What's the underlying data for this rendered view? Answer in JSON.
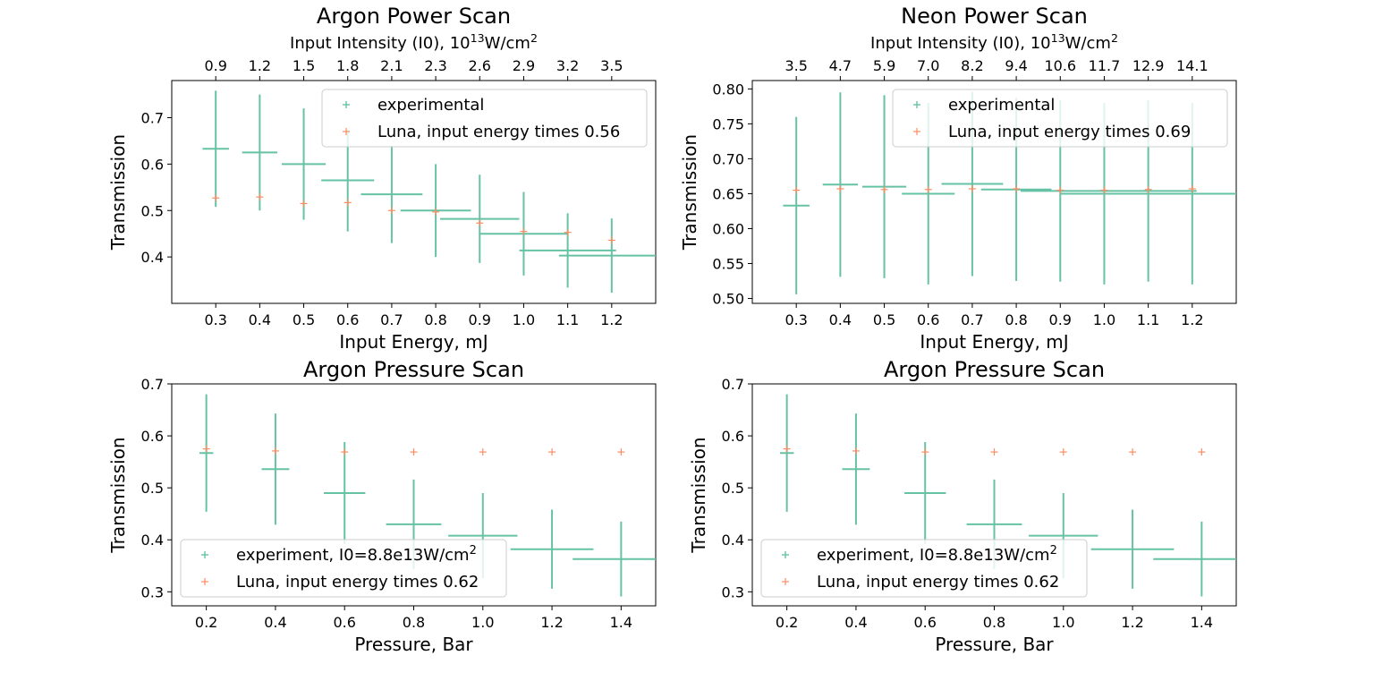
{
  "colors": {
    "experimental": "#66c2a5",
    "luna": "#fc8d62",
    "axis": "#000000",
    "legend_border": "#cccccc"
  },
  "chart_data": [
    {
      "id": "argon-power",
      "type": "scatter",
      "title": "Argon Power Scan",
      "xlabel": "Input Energy, mJ",
      "ylabel": "Transmission",
      "top_xlabel": {
        "base": "Input Intensity (I0), 10",
        "exp": "13",
        "unit": "W/cm",
        "unit_exp": "2"
      },
      "top_ticks": [
        "0.9",
        "1.2",
        "1.5",
        "1.8",
        "2.1",
        "2.3",
        "2.6",
        "2.9",
        "3.2",
        "3.5"
      ],
      "xlim": [
        0.2,
        1.3
      ],
      "ylim": [
        0.3,
        0.78
      ],
      "xticks": [
        "0.3",
        "0.4",
        "0.5",
        "0.6",
        "0.7",
        "0.8",
        "0.9",
        "1.0",
        "1.1",
        "1.2"
      ],
      "yticks": [
        "0.4",
        "0.5",
        "0.6",
        "0.7"
      ],
      "legend_position": "upper-right",
      "series": [
        {
          "name": "experimental",
          "points": [
            {
              "x": 0.3,
              "y": 0.633,
              "xerr": [
                0.03,
                0.03
              ],
              "yerr": [
                0.125,
                0.125
              ]
            },
            {
              "x": 0.4,
              "y": 0.625,
              "xerr": [
                0.04,
                0.04
              ],
              "yerr": [
                0.125,
                0.125
              ]
            },
            {
              "x": 0.5,
              "y": 0.6,
              "xerr": [
                0.05,
                0.05
              ],
              "yerr": [
                0.12,
                0.12
              ]
            },
            {
              "x": 0.6,
              "y": 0.565,
              "xerr": [
                0.06,
                0.06
              ],
              "yerr": [
                0.11,
                0.11
              ]
            },
            {
              "x": 0.7,
              "y": 0.535,
              "xerr": [
                0.07,
                0.07
              ],
              "yerr": [
                0.105,
                0.105
              ]
            },
            {
              "x": 0.8,
              "y": 0.5,
              "xerr": [
                0.08,
                0.08
              ],
              "yerr": [
                0.1,
                0.1
              ]
            },
            {
              "x": 0.9,
              "y": 0.482,
              "xerr": [
                0.09,
                0.09
              ],
              "yerr": [
                0.095,
                0.095
              ]
            },
            {
              "x": 1.0,
              "y": 0.45,
              "xerr": [
                0.1,
                0.1
              ],
              "yerr": [
                0.09,
                0.09
              ]
            },
            {
              "x": 1.1,
              "y": 0.414,
              "xerr": [
                0.11,
                0.11
              ],
              "yerr": [
                0.08,
                0.08
              ]
            },
            {
              "x": 1.2,
              "y": 0.403,
              "xerr": [
                0.12,
                0.12
              ],
              "yerr": [
                0.08,
                0.08
              ]
            }
          ]
        },
        {
          "name": "Luna, input energy times 0.56",
          "points": [
            {
              "x": 0.3,
              "y": 0.527
            },
            {
              "x": 0.4,
              "y": 0.529
            },
            {
              "x": 0.5,
              "y": 0.515
            },
            {
              "x": 0.6,
              "y": 0.517
            },
            {
              "x": 0.7,
              "y": 0.5
            },
            {
              "x": 0.8,
              "y": 0.497
            },
            {
              "x": 0.9,
              "y": 0.473
            },
            {
              "x": 1.0,
              "y": 0.455
            },
            {
              "x": 1.1,
              "y": 0.453
            },
            {
              "x": 1.2,
              "y": 0.436
            }
          ]
        }
      ]
    },
    {
      "id": "neon-power",
      "type": "scatter",
      "title": "Neon Power Scan",
      "xlabel": "Input Energy, mJ",
      "ylabel": "Transmission",
      "top_xlabel": {
        "base": "Input Intensity (I0), 10",
        "exp": "13",
        "unit": "W/cm",
        "unit_exp": "2"
      },
      "top_ticks": [
        "3.5",
        "4.7",
        "5.9",
        "7.0",
        "8.2",
        "9.4",
        "10.6",
        "11.7",
        "12.9",
        "14.1"
      ],
      "xlim": [
        0.2,
        1.3
      ],
      "ylim": [
        0.493,
        0.812
      ],
      "xticks": [
        "0.3",
        "0.4",
        "0.5",
        "0.6",
        "0.7",
        "0.8",
        "0.9",
        "1.0",
        "1.1",
        "1.2"
      ],
      "yticks": [
        "0.50",
        "0.55",
        "0.60",
        "0.65",
        "0.70",
        "0.75",
        "0.80"
      ],
      "legend_position": "upper-right",
      "series": [
        {
          "name": "experimental",
          "points": [
            {
              "x": 0.3,
              "y": 0.633,
              "xerr": [
                0.03,
                0.03
              ],
              "yerr": [
                0.127,
                0.127
              ]
            },
            {
              "x": 0.4,
              "y": 0.663,
              "xerr": [
                0.04,
                0.04
              ],
              "yerr": [
                0.132,
                0.132
              ]
            },
            {
              "x": 0.5,
              "y": 0.66,
              "xerr": [
                0.05,
                0.05
              ],
              "yerr": [
                0.131,
                0.131
              ]
            },
            {
              "x": 0.6,
              "y": 0.65,
              "xerr": [
                0.06,
                0.06
              ],
              "yerr": [
                0.13,
                0.13
              ]
            },
            {
              "x": 0.7,
              "y": 0.664,
              "xerr": [
                0.07,
                0.07
              ],
              "yerr": [
                0.132,
                0.132
              ]
            },
            {
              "x": 0.8,
              "y": 0.656,
              "xerr": [
                0.08,
                0.08
              ],
              "yerr": [
                0.131,
                0.131
              ]
            },
            {
              "x": 0.9,
              "y": 0.654,
              "xerr": [
                0.09,
                0.09
              ],
              "yerr": [
                0.13,
                0.13
              ]
            },
            {
              "x": 1.0,
              "y": 0.65,
              "xerr": [
                0.1,
                0.1
              ],
              "yerr": [
                0.13,
                0.13
              ]
            },
            {
              "x": 1.1,
              "y": 0.654,
              "xerr": [
                0.11,
                0.11
              ],
              "yerr": [
                0.13,
                0.13
              ]
            },
            {
              "x": 1.2,
              "y": 0.65,
              "xerr": [
                0.12,
                0.12
              ],
              "yerr": [
                0.13,
                0.13
              ]
            }
          ]
        },
        {
          "name": "Luna, input energy times 0.69",
          "points": [
            {
              "x": 0.3,
              "y": 0.655
            },
            {
              "x": 0.4,
              "y": 0.657
            },
            {
              "x": 0.5,
              "y": 0.656
            },
            {
              "x": 0.6,
              "y": 0.656
            },
            {
              "x": 0.7,
              "y": 0.657
            },
            {
              "x": 0.8,
              "y": 0.657
            },
            {
              "x": 0.9,
              "y": 0.655
            },
            {
              "x": 1.0,
              "y": 0.655
            },
            {
              "x": 1.1,
              "y": 0.656
            },
            {
              "x": 1.2,
              "y": 0.657
            }
          ]
        }
      ]
    },
    {
      "id": "argon-pressure-left",
      "type": "scatter",
      "title": "Argon Pressure Scan",
      "xlabel": "Pressure, Bar",
      "ylabel": "Transmission",
      "xlim": [
        0.1,
        1.5
      ],
      "ylim": [
        0.273,
        0.7
      ],
      "xticks": [
        "0.2",
        "0.4",
        "0.6",
        "0.8",
        "1.0",
        "1.2",
        "1.4"
      ],
      "yticks": [
        "0.3",
        "0.4",
        "0.5",
        "0.6",
        "0.7"
      ],
      "legend_position": "lower-left",
      "series": [
        {
          "name": "experiment, I0=8.8e13W/cm",
          "name_exp": "2",
          "points": [
            {
              "x": 0.2,
              "y": 0.567,
              "xerr": [
                0.02,
                0.02
              ],
              "yerr": [
                0.113,
                0.113
              ]
            },
            {
              "x": 0.4,
              "y": 0.536,
              "xerr": [
                0.04,
                0.04
              ],
              "yerr": [
                0.107,
                0.107
              ]
            },
            {
              "x": 0.6,
              "y": 0.49,
              "xerr": [
                0.06,
                0.06
              ],
              "yerr": [
                0.098,
                0.098
              ]
            },
            {
              "x": 0.8,
              "y": 0.43,
              "xerr": [
                0.08,
                0.08
              ],
              "yerr": [
                0.086,
                0.086
              ]
            },
            {
              "x": 1.0,
              "y": 0.408,
              "xerr": [
                0.1,
                0.1
              ],
              "yerr": [
                0.082,
                0.082
              ]
            },
            {
              "x": 1.2,
              "y": 0.382,
              "xerr": [
                0.12,
                0.12
              ],
              "yerr": [
                0.076,
                0.076
              ]
            },
            {
              "x": 1.4,
              "y": 0.363,
              "xerr": [
                0.14,
                0.14
              ],
              "yerr": [
                0.072,
                0.072
              ]
            }
          ]
        },
        {
          "name": "Luna, input energy times 0.62",
          "points": [
            {
              "x": 0.2,
              "y": 0.575
            },
            {
              "x": 0.4,
              "y": 0.571
            },
            {
              "x": 0.6,
              "y": 0.569
            },
            {
              "x": 0.8,
              "y": 0.569
            },
            {
              "x": 1.0,
              "y": 0.569
            },
            {
              "x": 1.2,
              "y": 0.569
            },
            {
              "x": 1.4,
              "y": 0.569
            }
          ]
        }
      ]
    },
    {
      "id": "argon-pressure-right",
      "type": "scatter",
      "title": "Argon Pressure Scan",
      "xlabel": "Pressure, Bar",
      "ylabel": "Transmission",
      "xlim": [
        0.1,
        1.5
      ],
      "ylim": [
        0.273,
        0.7
      ],
      "xticks": [
        "0.2",
        "0.4",
        "0.6",
        "0.8",
        "1.0",
        "1.2",
        "1.4"
      ],
      "yticks": [
        "0.3",
        "0.4",
        "0.5",
        "0.6",
        "0.7"
      ],
      "legend_position": "lower-left",
      "series": [
        {
          "name": "experiment, I0=8.8e13W/cm",
          "name_exp": "2",
          "points": [
            {
              "x": 0.2,
              "y": 0.567,
              "xerr": [
                0.02,
                0.02
              ],
              "yerr": [
                0.113,
                0.113
              ]
            },
            {
              "x": 0.4,
              "y": 0.536,
              "xerr": [
                0.04,
                0.04
              ],
              "yerr": [
                0.107,
                0.107
              ]
            },
            {
              "x": 0.6,
              "y": 0.49,
              "xerr": [
                0.06,
                0.06
              ],
              "yerr": [
                0.098,
                0.098
              ]
            },
            {
              "x": 0.8,
              "y": 0.43,
              "xerr": [
                0.08,
                0.08
              ],
              "yerr": [
                0.086,
                0.086
              ]
            },
            {
              "x": 1.0,
              "y": 0.408,
              "xerr": [
                0.1,
                0.1
              ],
              "yerr": [
                0.082,
                0.082
              ]
            },
            {
              "x": 1.2,
              "y": 0.382,
              "xerr": [
                0.12,
                0.12
              ],
              "yerr": [
                0.076,
                0.076
              ]
            },
            {
              "x": 1.4,
              "y": 0.363,
              "xerr": [
                0.14,
                0.14
              ],
              "yerr": [
                0.072,
                0.072
              ]
            }
          ]
        },
        {
          "name": "Luna, input energy times 0.62",
          "points": [
            {
              "x": 0.2,
              "y": 0.575
            },
            {
              "x": 0.4,
              "y": 0.571
            },
            {
              "x": 0.6,
              "y": 0.569
            },
            {
              "x": 0.8,
              "y": 0.569
            },
            {
              "x": 1.0,
              "y": 0.569
            },
            {
              "x": 1.2,
              "y": 0.569
            },
            {
              "x": 1.4,
              "y": 0.569
            }
          ]
        }
      ]
    }
  ]
}
